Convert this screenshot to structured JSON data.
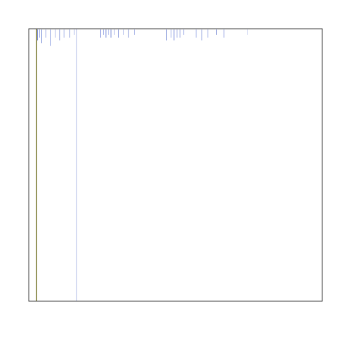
{
  "chart_data": {
    "type": "heatmap",
    "title": "",
    "xlabel": "",
    "ylabel": "",
    "grid": false,
    "legend": "none",
    "x_range": [
      0,
      1
    ],
    "y_range": [
      0,
      1
    ],
    "background": "#ffffff",
    "frame_color": "#444444",
    "marks": [
      {
        "id": "boundary-line",
        "kind": "line",
        "x": 0.026,
        "y_from": 0.0,
        "y_to": 1.0,
        "color": "#8a8a4a",
        "opacity": 0.9
      },
      {
        "id": "vertical-streak",
        "kind": "line",
        "x": 0.163,
        "y_from": 0.0,
        "y_to": 1.0,
        "color": "#4e63c8",
        "opacity": 0.35
      },
      {
        "id": "tick-01",
        "kind": "tick",
        "x": 0.03,
        "len": 0.04,
        "color": "#5d72d1",
        "opacity": 0.8
      },
      {
        "id": "tick-02",
        "kind": "tick",
        "x": 0.037,
        "len": 0.03,
        "color": "#6f86d9",
        "opacity": 0.6
      },
      {
        "id": "tick-03",
        "kind": "tick",
        "x": 0.044,
        "len": 0.05,
        "color": "#4f6ac9",
        "opacity": 0.7
      },
      {
        "id": "tick-04",
        "kind": "tick",
        "x": 0.058,
        "len": 0.03,
        "color": "#6277d6",
        "opacity": 0.6
      },
      {
        "id": "tick-05",
        "kind": "tick",
        "x": 0.073,
        "len": 0.06,
        "color": "#5570d1",
        "opacity": 0.6
      },
      {
        "id": "tick-06",
        "kind": "tick",
        "x": 0.09,
        "len": 0.03,
        "color": "#6a7fd8",
        "opacity": 0.5
      },
      {
        "id": "tick-07",
        "kind": "tick",
        "x": 0.105,
        "len": 0.04,
        "color": "#4e66c6",
        "opacity": 0.6
      },
      {
        "id": "tick-08",
        "kind": "tick",
        "x": 0.12,
        "len": 0.03,
        "color": "#5f78d6",
        "opacity": 0.5
      },
      {
        "id": "tick-09",
        "kind": "tick",
        "x": 0.14,
        "len": 0.03,
        "color": "#4d62c3",
        "opacity": 0.6
      },
      {
        "id": "tick-10",
        "kind": "tick",
        "x": 0.155,
        "len": 0.02,
        "color": "#6a7fd8",
        "opacity": 0.5
      },
      {
        "id": "tick-11",
        "kind": "tick",
        "x": 0.245,
        "len": 0.03,
        "color": "#5a6fd2",
        "opacity": 0.7
      },
      {
        "id": "tick-12",
        "kind": "tick",
        "x": 0.255,
        "len": 0.02,
        "color": "#6b80da",
        "opacity": 0.6
      },
      {
        "id": "tick-13",
        "kind": "tick",
        "x": 0.263,
        "len": 0.03,
        "color": "#5670d2",
        "opacity": 0.7
      },
      {
        "id": "tick-14",
        "kind": "tick",
        "x": 0.272,
        "len": 0.02,
        "color": "#6b80da",
        "opacity": 0.5
      },
      {
        "id": "tick-15",
        "kind": "tick",
        "x": 0.28,
        "len": 0.03,
        "color": "#4f68c7",
        "opacity": 0.7
      },
      {
        "id": "tick-16",
        "kind": "tick",
        "x": 0.292,
        "len": 0.02,
        "color": "#6b80da",
        "opacity": 0.5
      },
      {
        "id": "tick-17",
        "kind": "tick",
        "x": 0.305,
        "len": 0.03,
        "color": "#4e66c6",
        "opacity": 0.6
      },
      {
        "id": "tick-18",
        "kind": "tick",
        "x": 0.322,
        "len": 0.02,
        "color": "#6a7fd8",
        "opacity": 0.5
      },
      {
        "id": "tick-19",
        "kind": "tick",
        "x": 0.34,
        "len": 0.03,
        "color": "#4d62c3",
        "opacity": 0.6
      },
      {
        "id": "tick-20",
        "kind": "tick",
        "x": 0.36,
        "len": 0.02,
        "color": "#6277d6",
        "opacity": 0.5
      },
      {
        "id": "tick-21",
        "kind": "tick",
        "x": 0.47,
        "len": 0.04,
        "color": "#4f68c7",
        "opacity": 0.65
      },
      {
        "id": "tick-22",
        "kind": "tick",
        "x": 0.485,
        "len": 0.03,
        "color": "#6b80da",
        "opacity": 0.6
      },
      {
        "id": "tick-23",
        "kind": "tick",
        "x": 0.495,
        "len": 0.04,
        "color": "#5670d2",
        "opacity": 0.65
      },
      {
        "id": "tick-24",
        "kind": "tick",
        "x": 0.505,
        "len": 0.03,
        "color": "#6a7fd8",
        "opacity": 0.55
      },
      {
        "id": "tick-25",
        "kind": "tick",
        "x": 0.515,
        "len": 0.03,
        "color": "#4d62c3",
        "opacity": 0.6
      },
      {
        "id": "tick-26",
        "kind": "tick",
        "x": 0.528,
        "len": 0.02,
        "color": "#6b80da",
        "opacity": 0.5
      },
      {
        "id": "tick-27",
        "kind": "tick",
        "x": 0.57,
        "len": 0.03,
        "color": "#5f78d6",
        "opacity": 0.55
      },
      {
        "id": "tick-28",
        "kind": "tick",
        "x": 0.59,
        "len": 0.04,
        "color": "#4f6ac9",
        "opacity": 0.6
      },
      {
        "id": "tick-29",
        "kind": "tick",
        "x": 0.61,
        "len": 0.03,
        "color": "#6a7fd8",
        "opacity": 0.5
      },
      {
        "id": "tick-30",
        "kind": "tick",
        "x": 0.64,
        "len": 0.02,
        "color": "#4e66c6",
        "opacity": 0.55
      },
      {
        "id": "tick-31",
        "kind": "tick",
        "x": 0.665,
        "len": 0.03,
        "color": "#6277d6",
        "opacity": 0.5
      },
      {
        "id": "tick-32",
        "kind": "tick",
        "x": 0.745,
        "len": 0.02,
        "color": "#a3b2e6",
        "opacity": 0.4
      }
    ]
  }
}
